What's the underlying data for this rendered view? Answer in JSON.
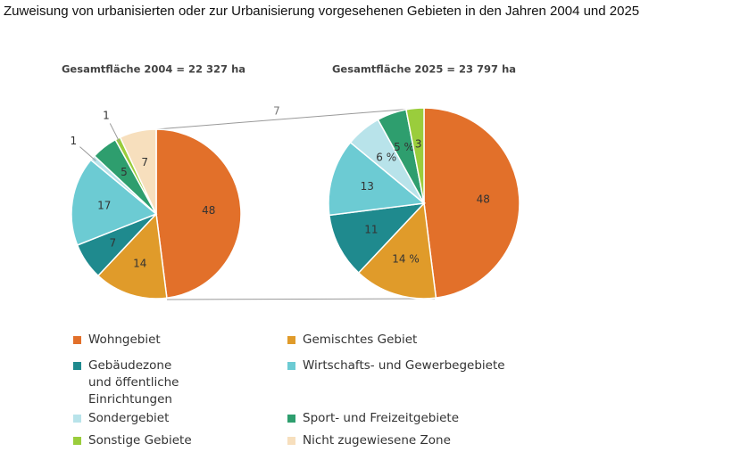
{
  "title": "Zuweisung von urbanisierten oder zur Urbanisierung vorgesehenen Gebieten in den Jahren 2004 und 2025",
  "legend": {
    "categories": [
      "Wohngebiet",
      "Gemischtes Gebiet",
      "Gebäudezone und öffentliche Einrichtungen",
      "Wirtschafts- und Gewerbegebiete",
      "Sondergebiet",
      "Sport- und Freizeitgebiete",
      "Sonstige Gebiete",
      "Nicht zugewiesene Zone"
    ],
    "colors": [
      "#e2702a",
      "#e09b2a",
      "#1f8a8e",
      "#6ccbd3",
      "#b8e3ea",
      "#2e9e6e",
      "#9acd3c",
      "#f7dfbd"
    ]
  },
  "annotations": [
    "7"
  ],
  "chart_data": [
    {
      "type": "pie",
      "title": "Gesamtfläche 2004 = 22 327 ha",
      "values": [
        48,
        14,
        7,
        17,
        1,
        5,
        1,
        7
      ]
    },
    {
      "type": "pie",
      "title": "Gesamtfläche 2025 = 23 797 ha",
      "values": [
        48,
        14,
        11,
        13,
        6,
        5,
        3,
        null
      ],
      "value_labels": [
        "48",
        "14 %",
        "11",
        "13",
        "6 %",
        "5 %",
        "3",
        null
      ]
    }
  ]
}
